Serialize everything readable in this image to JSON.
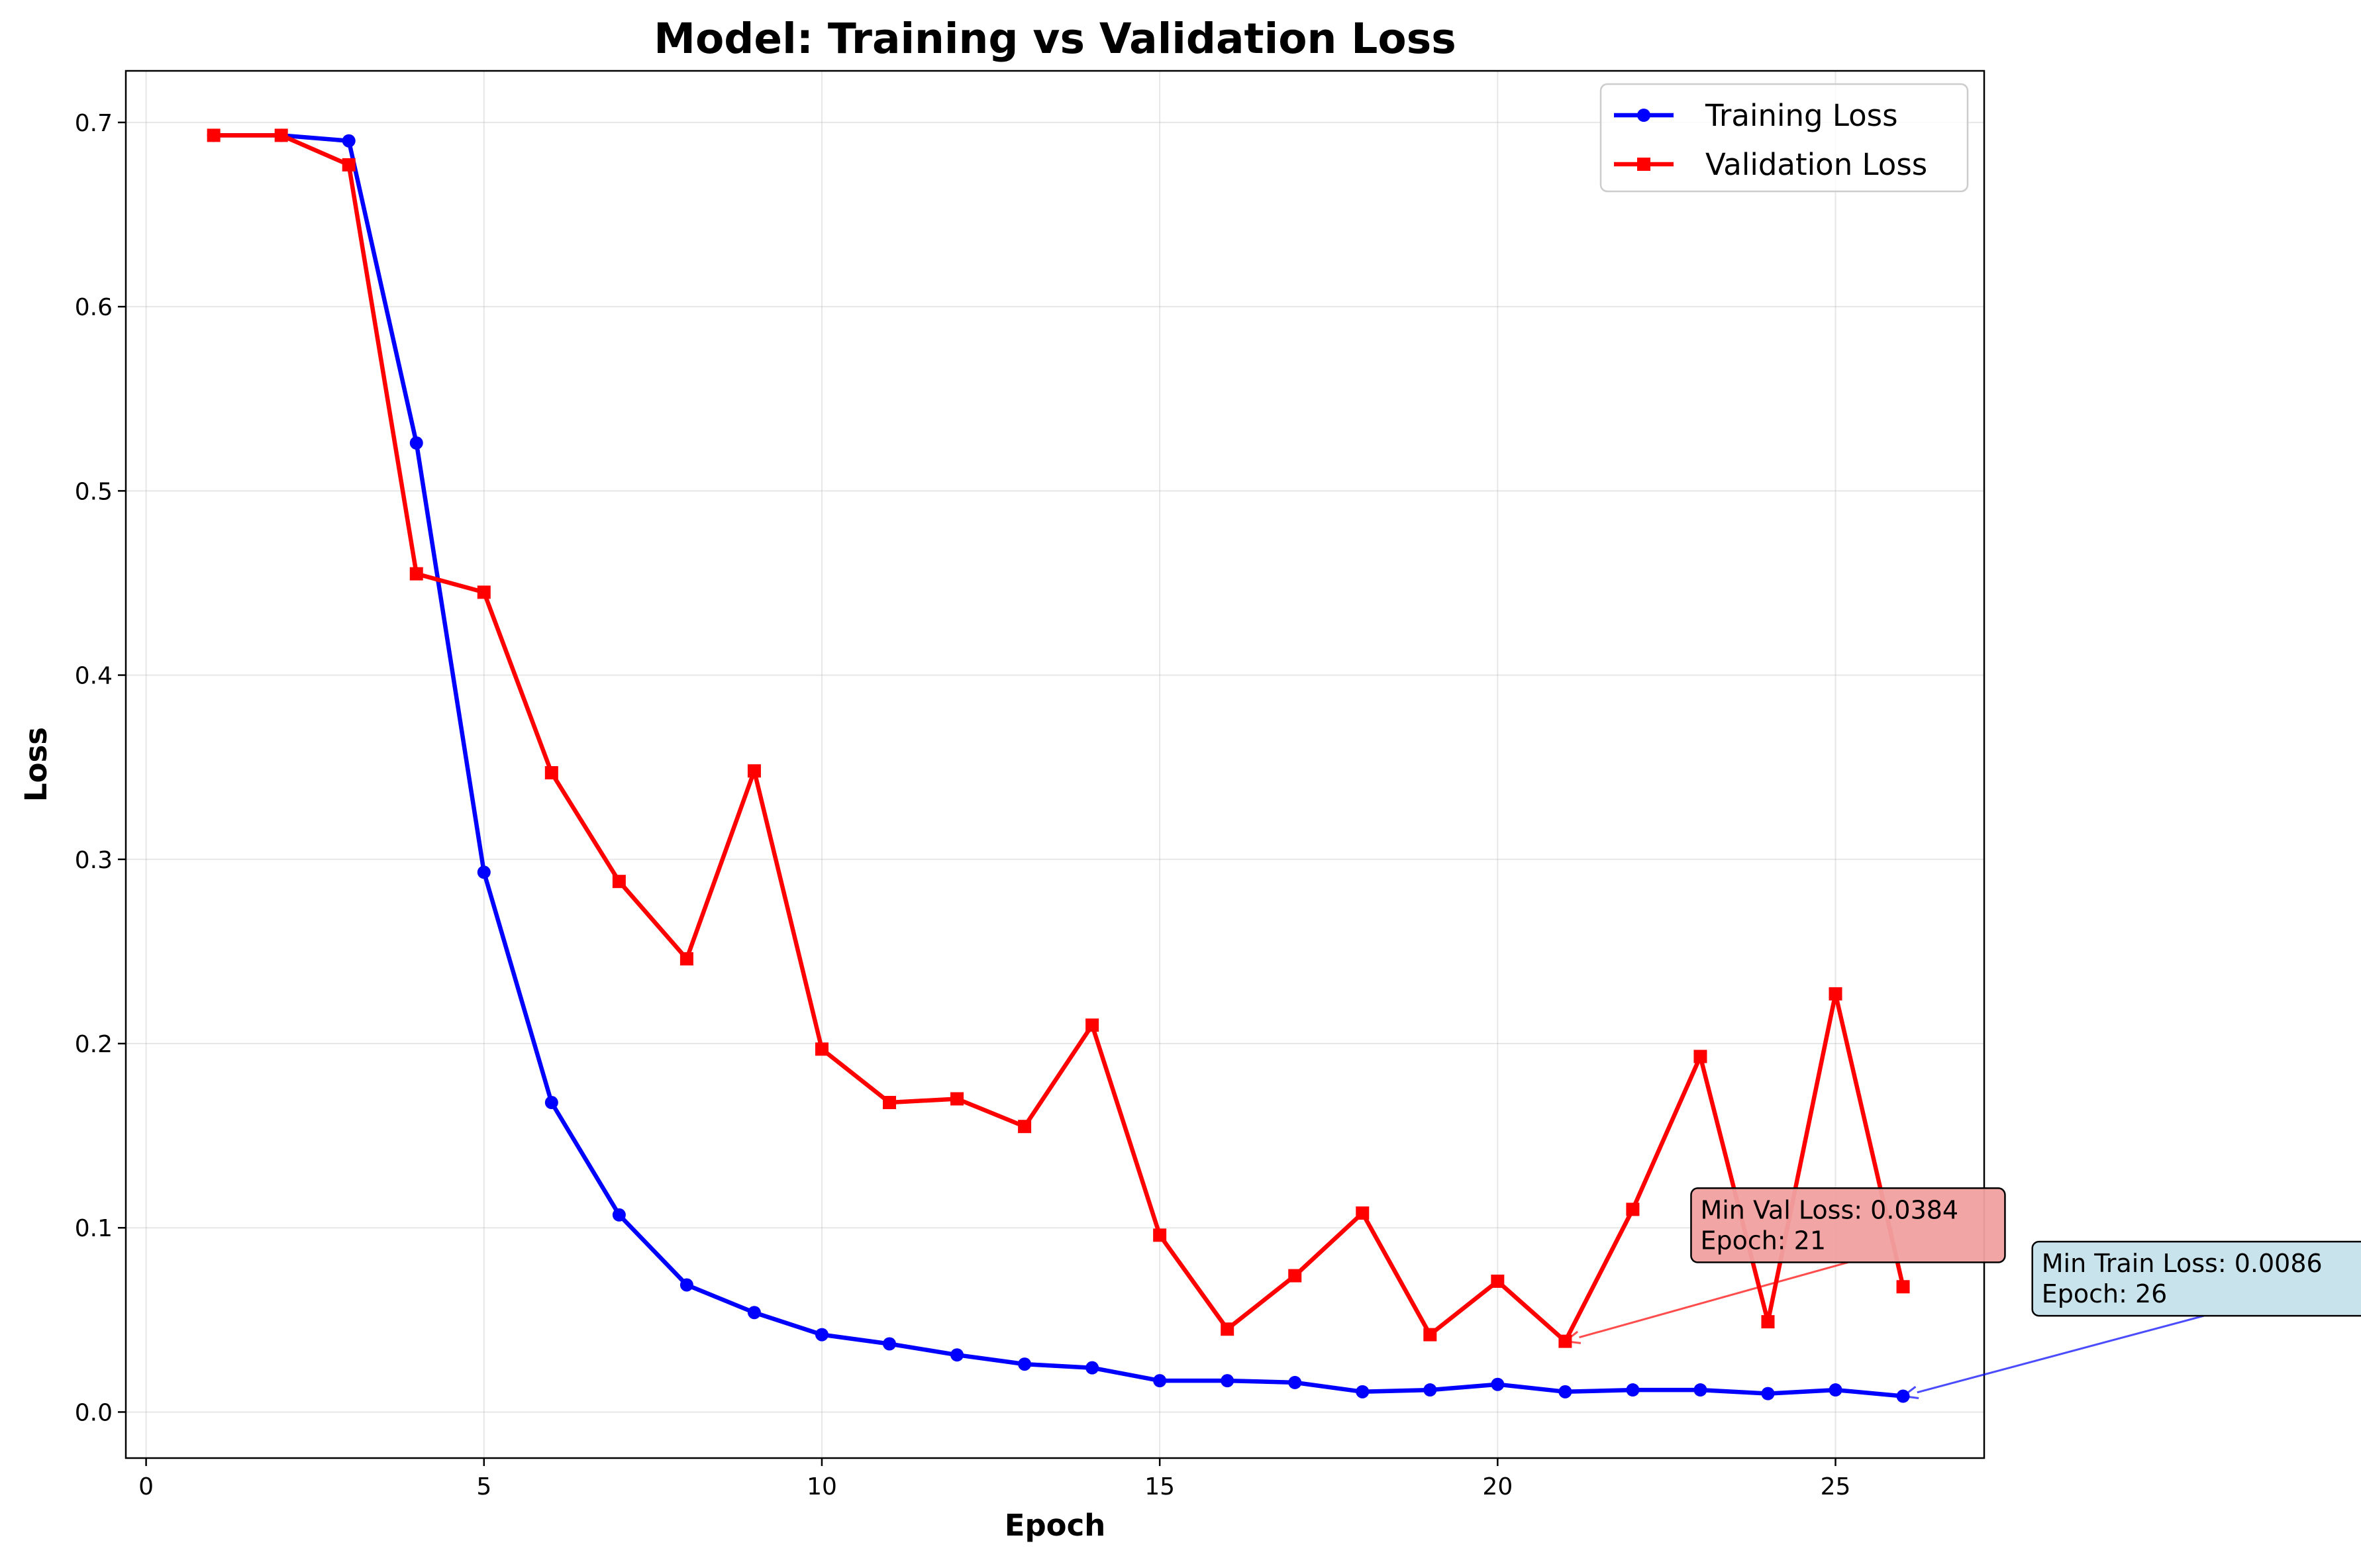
{
  "chart_data": {
    "type": "line",
    "title": "Model: Training vs Validation Loss",
    "xlabel": "Epoch",
    "ylabel": "Loss",
    "xlim": [
      -0.3,
      27.2
    ],
    "ylim": [
      -0.025,
      0.728
    ],
    "xticks": [
      0,
      5,
      10,
      15,
      20,
      25
    ],
    "yticks": [
      0.0,
      0.1,
      0.2,
      0.3,
      0.4,
      0.5,
      0.6,
      0.7
    ],
    "grid": true,
    "legend_position": "top-right",
    "series": [
      {
        "name": "Training Loss",
        "color": "#0000ff",
        "marker": "circle",
        "x": [
          1,
          2,
          3,
          4,
          5,
          6,
          7,
          8,
          9,
          10,
          11,
          12,
          13,
          14,
          15,
          16,
          17,
          18,
          19,
          20,
          21,
          22,
          23,
          24,
          25,
          26
        ],
        "values": [
          0.693,
          0.693,
          0.69,
          0.526,
          0.293,
          0.168,
          0.107,
          0.069,
          0.054,
          0.042,
          0.037,
          0.031,
          0.026,
          0.024,
          0.017,
          0.017,
          0.016,
          0.011,
          0.012,
          0.015,
          0.011,
          0.012,
          0.012,
          0.01,
          0.012,
          0.0086
        ]
      },
      {
        "name": "Validation Loss",
        "color": "#ff0000",
        "marker": "square",
        "x": [
          1,
          2,
          3,
          4,
          5,
          6,
          7,
          8,
          9,
          10,
          11,
          12,
          13,
          14,
          15,
          16,
          17,
          18,
          19,
          20,
          21,
          22,
          23,
          24,
          25,
          26
        ],
        "values": [
          0.693,
          0.693,
          0.677,
          0.455,
          0.445,
          0.347,
          0.288,
          0.246,
          0.348,
          0.197,
          0.168,
          0.17,
          0.155,
          0.21,
          0.096,
          0.045,
          0.074,
          0.108,
          0.042,
          0.071,
          0.0384,
          0.11,
          0.193,
          0.049,
          0.227,
          0.068
        ]
      }
    ],
    "annotations": [
      {
        "id": "min-val",
        "lines": [
          "Min Val Loss: 0.0384",
          "Epoch: 21"
        ],
        "point": [
          21,
          0.0384
        ],
        "text_at": [
          23,
          0.087
        ],
        "box_color": "#f0a0a0",
        "arrow_color": "#ff0000"
      },
      {
        "id": "min-train",
        "lines": [
          "Min Train Loss: 0.0086",
          "Epoch: 26"
        ],
        "point": [
          26,
          0.0086
        ],
        "text_at": [
          28.05,
          0.058
        ],
        "box_color": "#c6e2ec",
        "arrow_color": "#0000ff"
      }
    ]
  }
}
